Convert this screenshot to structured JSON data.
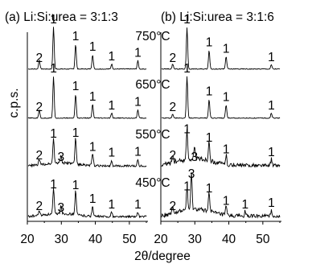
{
  "panel_titles": {
    "a": "(a) Li:Si:urea = 3:1:3",
    "b": "(b) Li:Si:urea = 3:1:6"
  },
  "ylabel": "c.p.s.",
  "xlabel": "2θ/degree",
  "x_ticks": [
    "20",
    "30",
    "40",
    "50"
  ],
  "temperature_labels": [
    "750°C",
    "650°C",
    "550°C",
    "450°C"
  ],
  "chart_data": [
    {
      "type": "line",
      "title": "(a) Li:Si:urea = 3:1:3",
      "xlabel": "2θ/degree",
      "ylabel": "c.p.s.",
      "xlim": [
        20,
        55
      ],
      "x_ticks": [
        20,
        30,
        40,
        50
      ],
      "y_ticks": "none",
      "series": [
        {
          "name": "750°C",
          "peaks": [
            {
              "x": 23.5,
              "height": 0.22,
              "label": "2"
            },
            {
              "x": 27.7,
              "height": 1.0,
              "label": "1"
            },
            {
              "x": 34.2,
              "height": 0.6,
              "label": "1"
            },
            {
              "x": 39.2,
              "height": 0.35,
              "label": "1"
            },
            {
              "x": 44.8,
              "height": 0.12,
              "label": "1"
            },
            {
              "x": 52.5,
              "height": 0.2,
              "label": "1"
            }
          ]
        },
        {
          "name": "650°C",
          "peaks": [
            {
              "x": 23.5,
              "height": 0.2,
              "label": "2"
            },
            {
              "x": 27.7,
              "height": 1.0,
              "label": "1"
            },
            {
              "x": 34.2,
              "height": 0.58,
              "label": "1"
            },
            {
              "x": 39.2,
              "height": 0.33,
              "label": "1"
            },
            {
              "x": 44.8,
              "height": 0.12,
              "label": "1"
            },
            {
              "x": 52.5,
              "height": 0.2,
              "label": "1"
            }
          ]
        },
        {
          "name": "550°C",
          "peaks": [
            {
              "x": 23.5,
              "height": 0.12,
              "label": "2"
            },
            {
              "x": 27.7,
              "height": 0.6,
              "label": "1"
            },
            {
              "x": 29.9,
              "height": 0.18,
              "label": "3"
            },
            {
              "x": 34.2,
              "height": 0.62,
              "label": "1"
            },
            {
              "x": 39.2,
              "height": 0.28,
              "label": "1"
            },
            {
              "x": 44.8,
              "height": 0.14,
              "label": "1"
            },
            {
              "x": 52.5,
              "height": 0.16,
              "label": "1"
            }
          ]
        },
        {
          "name": "450°C",
          "peaks": [
            {
              "x": 23.5,
              "height": 0.12,
              "label": "2"
            },
            {
              "x": 27.7,
              "height": 0.6,
              "label": "1"
            },
            {
              "x": 29.9,
              "height": 0.2,
              "label": "3"
            },
            {
              "x": 34.2,
              "height": 0.58,
              "label": "1"
            },
            {
              "x": 39.2,
              "height": 0.25,
              "label": "1"
            },
            {
              "x": 44.8,
              "height": 0.12,
              "label": "1"
            },
            {
              "x": 52.5,
              "height": 0.12,
              "label": "1"
            }
          ]
        }
      ]
    },
    {
      "type": "line",
      "title": "(b) Li:Si:urea = 3:1:6",
      "xlabel": "2θ/degree",
      "ylabel": "c.p.s.",
      "xlim": [
        20,
        55
      ],
      "x_ticks": [
        20,
        30,
        40,
        50
      ],
      "y_ticks": "none",
      "series": [
        {
          "name": "750°C",
          "peaks": [
            {
              "x": 23.5,
              "height": 0.12,
              "label": "2"
            },
            {
              "x": 27.7,
              "height": 1.0,
              "label": "1"
            },
            {
              "x": 34.2,
              "height": 0.45,
              "label": "1"
            },
            {
              "x": 39.2,
              "height": 0.3,
              "label": "1"
            },
            {
              "x": 52.5,
              "height": 0.1,
              "label": "1"
            }
          ]
        },
        {
          "name": "650°C",
          "peaks": [
            {
              "x": 23.5,
              "height": 0.1,
              "label": "2"
            },
            {
              "x": 27.7,
              "height": 1.0,
              "label": "1"
            },
            {
              "x": 34.2,
              "height": 0.45,
              "label": "1"
            },
            {
              "x": 39.2,
              "height": 0.32,
              "label": "1"
            },
            {
              "x": 52.5,
              "height": 0.12,
              "label": "1"
            }
          ]
        },
        {
          "name": "550°C",
          "peaks": [
            {
              "x": 23.5,
              "height": 0.2,
              "label": "2"
            },
            {
              "x": 27.7,
              "height": 0.7,
              "label": "1"
            },
            {
              "x": 29.9,
              "height": 0.25,
              "label": "3"
            },
            {
              "x": 34.2,
              "height": 0.5,
              "label": "1"
            },
            {
              "x": 39.2,
              "height": 0.22,
              "label": "1"
            },
            {
              "x": 52.5,
              "height": 0.15,
              "label": "1"
            }
          ]
        },
        {
          "name": "450°C",
          "peaks": [
            {
              "x": 23.5,
              "height": 0.2,
              "label": "2"
            },
            {
              "x": 27.7,
              "height": 0.55,
              "label": "1"
            },
            {
              "x": 29.0,
              "height": 0.85,
              "label": "3"
            },
            {
              "x": 34.2,
              "height": 0.5,
              "label": "1"
            },
            {
              "x": 39.2,
              "height": 0.2,
              "label": "1"
            },
            {
              "x": 44.8,
              "height": 0.12,
              "label": "1"
            },
            {
              "x": 52.5,
              "height": 0.15,
              "label": "1"
            }
          ]
        }
      ]
    }
  ]
}
